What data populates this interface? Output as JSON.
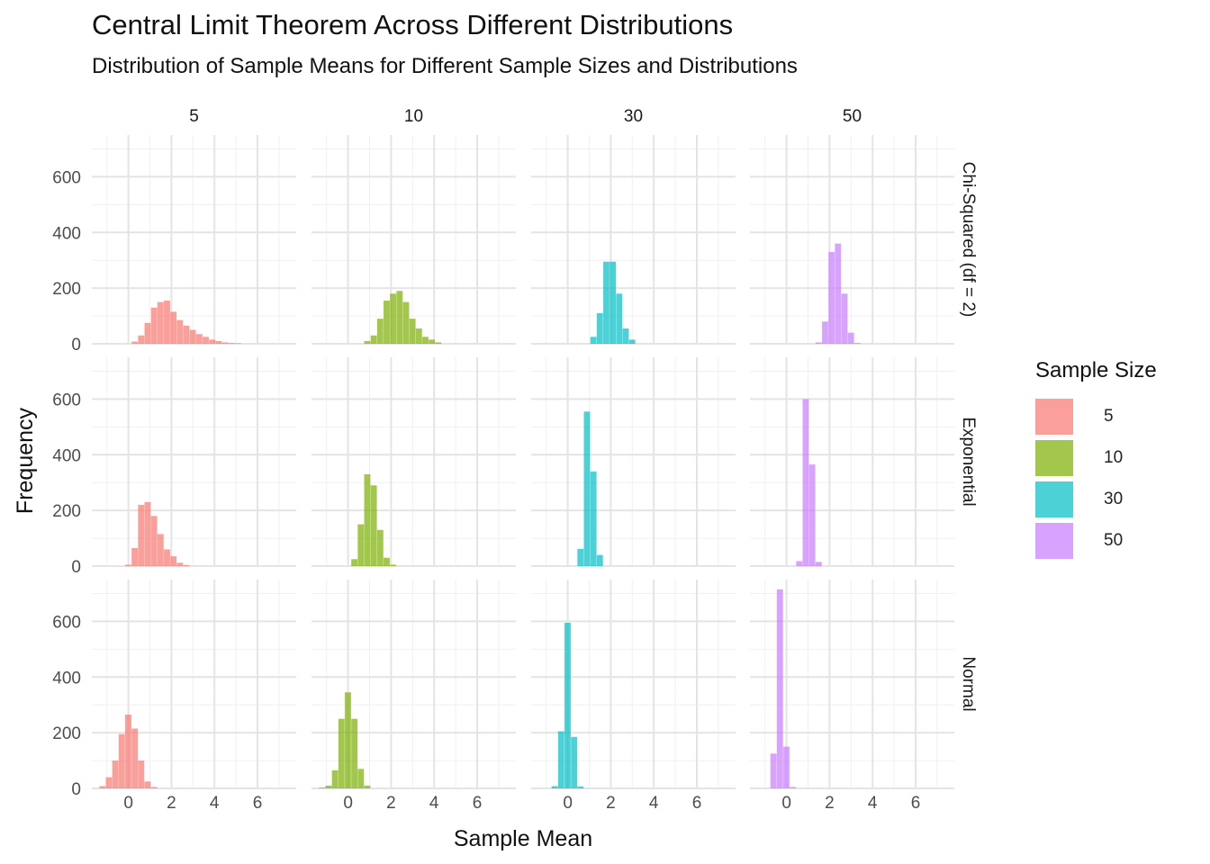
{
  "chart_data": {
    "type": "histogram-facet",
    "title": "Central Limit Theorem Across Different Distributions",
    "subtitle": "Distribution of Sample Means for Different Sample Sizes and Distributions",
    "xlabel": "Sample Mean",
    "ylabel": "Frequency",
    "xlim": [
      -1.7,
      7.8
    ],
    "ylim": [
      0,
      750
    ],
    "x_ticks": [
      0,
      2,
      4,
      6
    ],
    "y_ticks": [
      0,
      200,
      400,
      600
    ],
    "grid": true,
    "legend_position": "right",
    "legend_title": "Sample Size",
    "column_labels": [
      "5",
      "10",
      "30",
      "50"
    ],
    "row_labels": [
      "Chi-Squared (df = 2)",
      "Exponential",
      "Normal"
    ],
    "series": [
      {
        "name": "5",
        "color": "#F8766D"
      },
      {
        "name": "10",
        "color": "#7CAE00"
      },
      {
        "name": "30",
        "color": "#00BFC4"
      },
      {
        "name": "50",
        "color": "#C77CFF"
      }
    ],
    "bin_width": 0.3,
    "panels": [
      [
        {
          "bins": [
            [
              0.3,
              8
            ],
            [
              0.6,
              30
            ],
            [
              0.9,
              75
            ],
            [
              1.2,
              130
            ],
            [
              1.5,
              150
            ],
            [
              1.8,
              155
            ],
            [
              2.1,
              115
            ],
            [
              2.4,
              85
            ],
            [
              2.7,
              65
            ],
            [
              3.0,
              50
            ],
            [
              3.3,
              35
            ],
            [
              3.6,
              25
            ],
            [
              3.9,
              15
            ],
            [
              4.2,
              10
            ],
            [
              4.5,
              5
            ],
            [
              4.8,
              3
            ],
            [
              5.1,
              2
            ]
          ]
        },
        {
          "bins": [
            [
              0.9,
              10
            ],
            [
              1.2,
              30
            ],
            [
              1.5,
              90
            ],
            [
              1.8,
              155
            ],
            [
              2.1,
              180
            ],
            [
              2.4,
              190
            ],
            [
              2.7,
              150
            ],
            [
              3.0,
              90
            ],
            [
              3.3,
              55
            ],
            [
              3.6,
              25
            ],
            [
              3.9,
              15
            ],
            [
              4.2,
              5
            ]
          ]
        },
        {
          "bins": [
            [
              1.2,
              25
            ],
            [
              1.5,
              110
            ],
            [
              1.8,
              295
            ],
            [
              2.1,
              295
            ],
            [
              2.4,
              180
            ],
            [
              2.7,
              55
            ],
            [
              3.0,
              15
            ]
          ]
        },
        {
          "bins": [
            [
              1.5,
              5
            ],
            [
              1.8,
              80
            ],
            [
              2.1,
              330
            ],
            [
              2.4,
              360
            ],
            [
              2.7,
              180
            ],
            [
              3.0,
              40
            ],
            [
              3.3,
              3
            ]
          ]
        }
      ],
      [
        {
          "bins": [
            [
              0.0,
              5
            ],
            [
              0.3,
              65
            ],
            [
              0.6,
              220
            ],
            [
              0.9,
              230
            ],
            [
              1.2,
              180
            ],
            [
              1.5,
              115
            ],
            [
              1.8,
              60
            ],
            [
              2.1,
              35
            ],
            [
              2.4,
              12
            ],
            [
              2.7,
              4
            ]
          ]
        },
        {
          "bins": [
            [
              0.3,
              25
            ],
            [
              0.6,
              150
            ],
            [
              0.9,
              330
            ],
            [
              1.2,
              290
            ],
            [
              1.5,
              130
            ],
            [
              1.8,
              30
            ],
            [
              2.1,
              5
            ]
          ]
        },
        {
          "bins": [
            [
              0.6,
              62
            ],
            [
              0.9,
              555
            ],
            [
              1.2,
              340
            ],
            [
              1.5,
              40
            ]
          ]
        },
        {
          "bins": [
            [
              0.6,
              18
            ],
            [
              0.9,
              600
            ],
            [
              1.2,
              365
            ],
            [
              1.5,
              15
            ]
          ]
        }
      ],
      [
        {
          "bins": [
            [
              -1.2,
              8
            ],
            [
              -0.9,
              40
            ],
            [
              -0.6,
              100
            ],
            [
              -0.3,
              195
            ],
            [
              0.0,
              265
            ],
            [
              0.3,
              215
            ],
            [
              0.6,
              100
            ],
            [
              0.9,
              25
            ],
            [
              1.2,
              5
            ]
          ]
        },
        {
          "bins": [
            [
              -1.2,
              3
            ],
            [
              -0.9,
              10
            ],
            [
              -0.6,
              65
            ],
            [
              -0.3,
              250
            ],
            [
              0.0,
              345
            ],
            [
              0.3,
              250
            ],
            [
              0.6,
              70
            ],
            [
              0.9,
              10
            ]
          ]
        },
        {
          "bins": [
            [
              -0.6,
              8
            ],
            [
              -0.3,
              205
            ],
            [
              0.0,
              595
            ],
            [
              0.3,
              185
            ],
            [
              0.6,
              7
            ]
          ]
        },
        {
          "bins": [
            [
              -0.6,
              125
            ],
            [
              -0.3,
              715
            ],
            [
              0.0,
              150
            ],
            [
              0.3,
              5
            ]
          ]
        }
      ]
    ]
  }
}
